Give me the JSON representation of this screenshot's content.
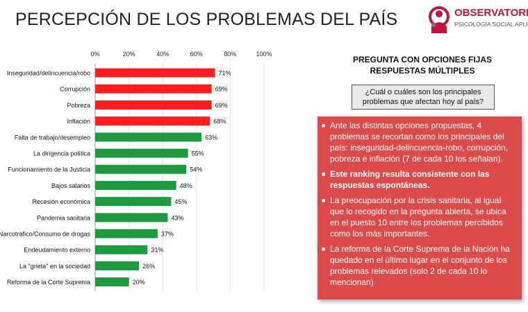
{
  "title": "PERCEPCIÓN DE LOS PROBLEMAS DEL PAÍS",
  "logo": {
    "name": "OBSERVATORIO",
    "subtitle": "PSICOLOGÍA SOCIAL APLICADA"
  },
  "colors": {
    "red": "#ff1f1f",
    "green": "#1e9a3e",
    "box": "#dc4b4b"
  },
  "chart_data": {
    "type": "bar",
    "orientation": "horizontal",
    "title": "",
    "xlim": [
      0,
      100
    ],
    "x_ticks": [
      "0%",
      "20%",
      "40%",
      "60%",
      "80%",
      "100%"
    ],
    "categories": [
      "Inseguridad/delincuencia/robo",
      "Corrupción",
      "Pobreza",
      "Inflación",
      "Falta de trabajo/desempleo",
      "La dirigencia política",
      "Funcionamiento de la Justicia",
      "Bajos salarios",
      "Recesión económica",
      "Pandemia sanitaria",
      "Narcotráfico/Consumo de drogas",
      "Endeudamiento externo",
      "La \"grieta\" en la sociedad",
      "Reforma de la Corte Suprema"
    ],
    "values": [
      71,
      69,
      69,
      68,
      63,
      55,
      54,
      48,
      45,
      43,
      37,
      31,
      26,
      20
    ],
    "value_labels": [
      "71%",
      "69%",
      "69%",
      "68%",
      "63%",
      "55%",
      "54%",
      "48%",
      "45%",
      "43%",
      "37%",
      "31%",
      "26%",
      "20%"
    ],
    "bar_colors": [
      "red",
      "red",
      "red",
      "red",
      "green",
      "green",
      "green",
      "green",
      "green",
      "green",
      "green",
      "green",
      "green",
      "green"
    ]
  },
  "panel": {
    "heading_line1": "PREGUNTA CON OPCIONES FIJAS",
    "heading_line2": "RESPUESTAS MÚLTIPLES",
    "question": "¿Cuál o cuáles son los principales problemas que afectan hoy al país?",
    "bullets": [
      {
        "text": "Ante las distintas opciones propuestas, 4 problemas se recortan como los principales del país: inseguridad-delincuencia-robo, corrupción, pobreza e inflación (7 de cada 10 los señalan).",
        "bold": false
      },
      {
        "text": "Este ranking resulta consistente con las respuestas espontáneas.",
        "bold": true
      },
      {
        "text": "La preocupación por la crisis sanitaria, al igual que lo recogido en la pregunta abierta, se ubica en el puesto 10 entre los problemas percibidos como los más importantes.",
        "bold": false
      },
      {
        "text": "La reforma de la Corte Suprema de la Nación ha quedado en el último lugar en el conjunto de los problemas relevados (solo 2 de cada 10 lo mencionan)",
        "bold": false
      }
    ]
  }
}
